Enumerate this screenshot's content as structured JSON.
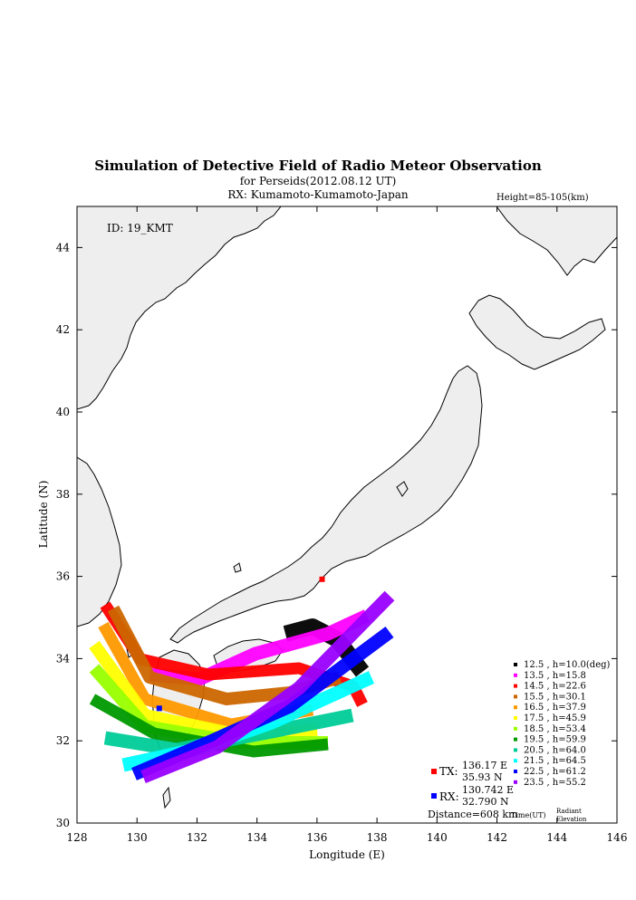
{
  "title": "Simulation of Detective Field of Radio Meteor Observation",
  "subtitle": "for Perseids(2012.08.12 UT)",
  "rx_line": "RX: Kumamoto-Kumamoto-Japan",
  "height_note": "Height=85-105(km)",
  "id_label": "ID: 19_KMT",
  "colors": {
    "land": "#eeeeee",
    "coast": "#000000",
    "tx": "#ff0000",
    "rx": "#0000ff"
  },
  "chart_data": {
    "type": "scatter",
    "xlabel": "Longitude (E)",
    "ylabel": "Latitude (N)",
    "xlim": [
      128,
      146
    ],
    "ylim": [
      30,
      45
    ],
    "xticks": [
      "128",
      "130",
      "132",
      "134",
      "136",
      "138",
      "140",
      "142",
      "144",
      "146"
    ],
    "yticks": [
      "30",
      "32",
      "34",
      "36",
      "38",
      "40",
      "42",
      "44"
    ],
    "legend_position": "bottom-right",
    "legend_footer": {
      "time": "Time(UT)",
      "radiant": "Radiant",
      "elevation": "Elevation"
    },
    "series": [
      {
        "name": "12.5 ,  h=10.0(deg)",
        "color": "#000000"
      },
      {
        "name": "13.5 ,  h=15.8",
        "color": "#ff00ff"
      },
      {
        "name": "14.5 ,  h=22.6",
        "color": "#ff0000"
      },
      {
        "name": "15.5 ,  h=30.1",
        "color": "#cc6600"
      },
      {
        "name": "16.5 ,  h=37.9",
        "color": "#ff9900"
      },
      {
        "name": "17.5 ,  h=45.9",
        "color": "#ffff00"
      },
      {
        "name": "18.5 ,  h=53.4",
        "color": "#99ff00"
      },
      {
        "name": "19.5 ,  h=59.9",
        "color": "#009900"
      },
      {
        "name": "20.5 ,  h=64.0",
        "color": "#00cc99"
      },
      {
        "name": "21.5 ,  h=64.5",
        "color": "#00ffff"
      },
      {
        "name": "22.5 ,  h=61.2",
        "color": "#0000ff"
      },
      {
        "name": "23.5 ,  h=55.2",
        "color": "#9900ff"
      }
    ],
    "tx": {
      "label": "TX:",
      "lon_text": "136.17 E",
      "lat_text": "35.93 N",
      "lon": 136.17,
      "lat": 35.93
    },
    "rx": {
      "label": "RX:",
      "lon_text": "130.742 E",
      "lat_text": "32.790 N",
      "lon": 130.742,
      "lat": 32.79
    },
    "distance": "Distance=608 km"
  }
}
